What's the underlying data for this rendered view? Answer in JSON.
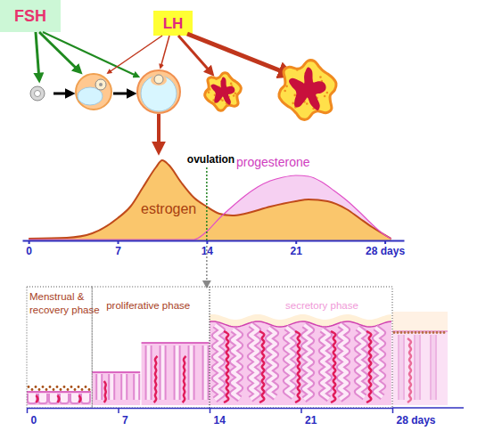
{
  "hormones": [
    {
      "label": "FSH",
      "color": "#e8336e",
      "background": "#ccf7d6"
    },
    {
      "label": "LH",
      "color": "#e0287e",
      "background": "#ffff33"
    }
  ],
  "chart_data": {
    "type": "area",
    "series": [
      {
        "name": "estrogen",
        "color": "#fac66c",
        "x": [
          0,
          3,
          5,
          7,
          8,
          9,
          10,
          10.5,
          11,
          12,
          13,
          14,
          15,
          16,
          17,
          19,
          21,
          22,
          23.5,
          25,
          26,
          27,
          28.5
        ],
        "values": [
          2,
          3,
          8,
          25,
          38,
          60,
          82,
          90,
          85,
          65,
          48,
          38,
          30,
          28,
          30,
          38,
          44,
          46,
          44,
          35,
          25,
          15,
          2
        ]
      },
      {
        "name": "progesterone",
        "color": "#f5c8f0",
        "x": [
          0,
          13,
          14,
          15,
          16,
          17,
          18,
          19,
          20,
          21,
          22,
          23,
          24,
          25,
          26,
          27,
          28,
          28.5
        ],
        "values": [
          1,
          1,
          10,
          25,
          38,
          50,
          60,
          67,
          71,
          73,
          72,
          66,
          56,
          45,
          32,
          18,
          6,
          2
        ]
      }
    ],
    "xlim": [
      -0.5,
      29.5
    ],
    "ylim": [
      0,
      100
    ],
    "xticks": [
      0,
      7,
      14,
      21,
      {
        "value": 28,
        "label": "28 days"
      }
    ],
    "tick_labels": "x",
    "annotations": [
      {
        "text": "ovulation",
        "x": 14
      }
    ]
  },
  "endometrium": {
    "phases": [
      {
        "label": "Menstrual &\nrecovery phase",
        "start": 0,
        "end": 5
      },
      {
        "label": "proliferative phase",
        "start": 5,
        "end": 14
      },
      {
        "label": "secretory phase",
        "start": 14,
        "end": 28
      }
    ],
    "ticks": [
      0,
      7,
      14,
      21,
      {
        "value": 28,
        "label": "28 days"
      }
    ]
  }
}
